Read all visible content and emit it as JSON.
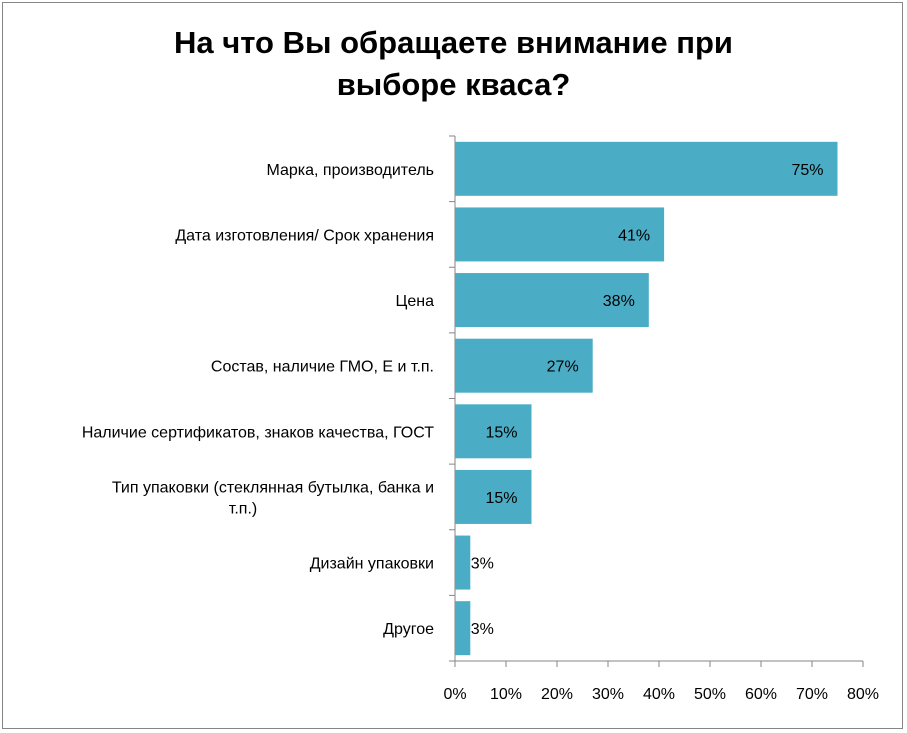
{
  "chart_data": {
    "type": "bar",
    "orientation": "horizontal",
    "title": "На что Вы обращаете внимание при выборе кваса?",
    "title_lines": [
      "На что Вы обращаете внимание при",
      "выборе кваса?"
    ],
    "categories": [
      "Марка, производитель",
      "Дата изготовления/ Срок хранения",
      "Цена",
      "Состав, наличие ГМО, Е и т.п.",
      "Наличие сертификатов, знаков качества, ГОСТ",
      "Тип упаковки (стеклянная бутылка, банка и т.п.)",
      "Дизайн упаковки",
      "Другое"
    ],
    "category_lines": [
      [
        "Марка, производитель"
      ],
      [
        "Дата изготовления/ Срок хранения"
      ],
      [
        "Цена"
      ],
      [
        "Состав, наличие ГМО, Е и т.п."
      ],
      [
        "Наличие сертификатов, знаков качества, ГОСТ"
      ],
      [
        "Тип упаковки (стеклянная бутылка, банка и",
        "т.п.)"
      ],
      [
        "Дизайн упаковки"
      ],
      [
        "Другое"
      ]
    ],
    "values": [
      75,
      41,
      38,
      27,
      15,
      15,
      3,
      3
    ],
    "data_labels": [
      "75%",
      "41%",
      "38%",
      "27%",
      "15%",
      "15%",
      "3%",
      "3%"
    ],
    "xlim": [
      0,
      80
    ],
    "xticks": [
      0,
      10,
      20,
      30,
      40,
      50,
      60,
      70,
      80
    ],
    "xtick_labels": [
      "0%",
      "10%",
      "20%",
      "30%",
      "40%",
      "50%",
      "60%",
      "70%",
      "80%"
    ],
    "xlabel": "",
    "ylabel": "",
    "grid": false,
    "legend": "none",
    "bar_color": "#4BACC6"
  }
}
